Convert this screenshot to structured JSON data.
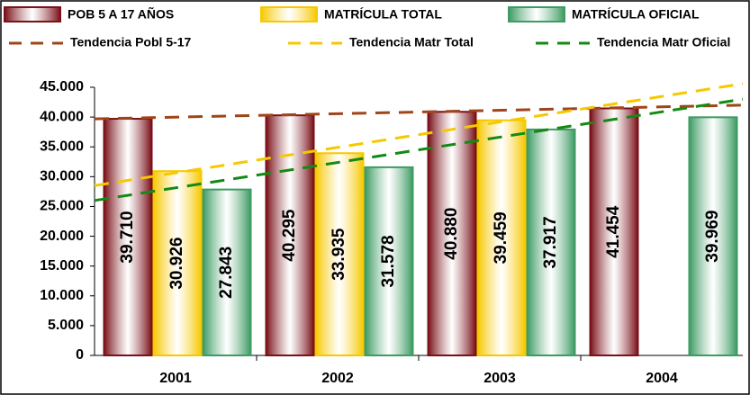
{
  "chart_data": {
    "type": "bar",
    "categories": [
      "2001",
      "2002",
      "2003",
      "2004"
    ],
    "series": [
      {
        "name": "POB 5 A 17 AÑOS",
        "color": "#7a1018",
        "values": [
          39710,
          40295,
          40880,
          41454
        ],
        "value_labels": [
          "39.710",
          "40.295",
          "40.880",
          "41.454"
        ]
      },
      {
        "name": "MATRÍCULA TOTAL",
        "color": "#f7c800",
        "values": [
          30926,
          33935,
          39459,
          null
        ],
        "value_labels": [
          "30.926",
          "33.935",
          "39.459",
          null
        ]
      },
      {
        "name": "MATRÍCULA OFICIAL",
        "color": "#3d9b63",
        "values": [
          27843,
          31578,
          37917,
          39969
        ],
        "value_labels": [
          "27.843",
          "31.578",
          "37.917",
          "39.969"
        ]
      }
    ],
    "trendlines": [
      {
        "name": "Tendencia Pobl 5-17",
        "color": "#a0441a",
        "values": [
          39700,
          42000
        ]
      },
      {
        "name": "Tendencia Matr Total",
        "color": "#f7c800",
        "values": [
          28500,
          45600
        ]
      },
      {
        "name": "Tendencia Matr Oficial",
        "color": "#148a14",
        "values": [
          26000,
          43000
        ]
      }
    ],
    "ylim": [
      0,
      45000
    ],
    "yticks": [
      {
        "value": 0,
        "label": "0"
      },
      {
        "value": 5000,
        "label": "5.000"
      },
      {
        "value": 10000,
        "label": "10.000"
      },
      {
        "value": 15000,
        "label": "15.000"
      },
      {
        "value": 20000,
        "label": "20.000"
      },
      {
        "value": 25000,
        "label": "25.000"
      },
      {
        "value": 30000,
        "label": "30.000"
      },
      {
        "value": 35000,
        "label": "35.000"
      },
      {
        "value": 40000,
        "label": "40.000"
      },
      {
        "value": 45000,
        "label": "45.000"
      }
    ]
  }
}
